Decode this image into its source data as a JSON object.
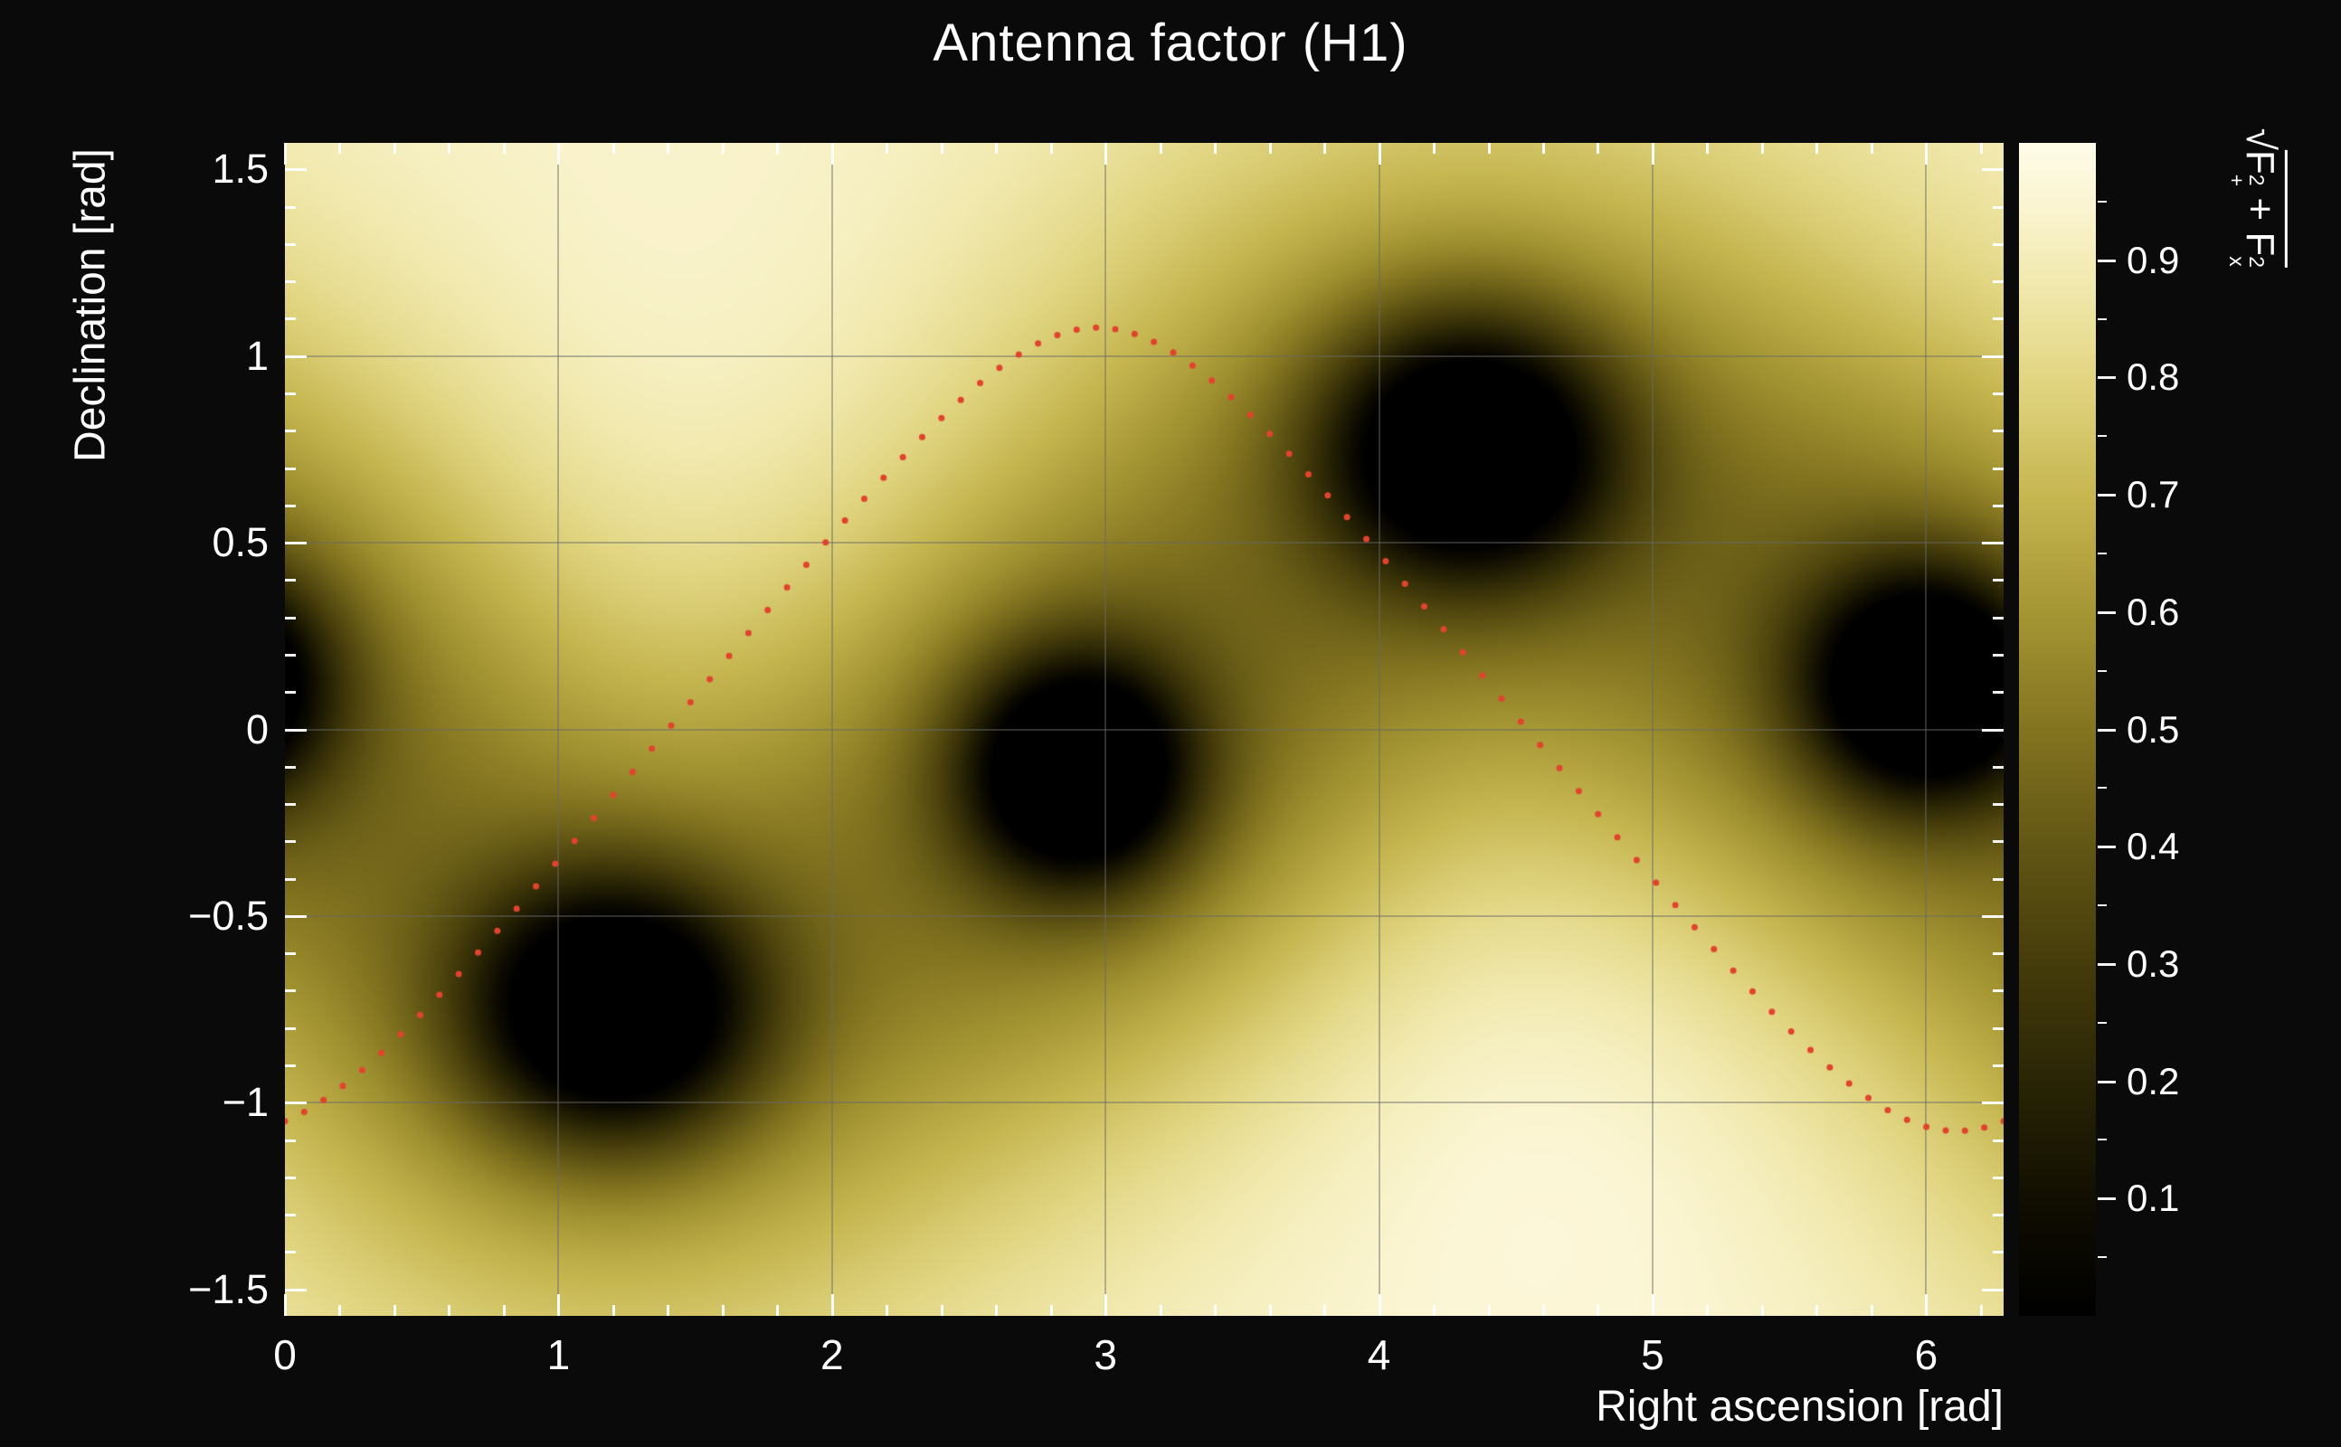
{
  "title": "Antenna factor (H1)",
  "axis_labels": {
    "x": "Right ascension [rad]",
    "y": "Declination [rad]"
  },
  "colorbar_label": {
    "radical": "√",
    "f1": "F",
    "f1_sup": "2",
    "f1_sub": "+",
    "op": "+",
    "f2": "F",
    "f2_sup": "2",
    "f2_sub": "x",
    "plain": "sqrt(F+^2 + Fx^2)"
  },
  "colors": {
    "background": "#0a0a0a",
    "text": "#ffffff",
    "tick": "#ffffff",
    "grid": "rgba(105,105,105,0.45)",
    "curve_dots": "#e0442e"
  },
  "chart_data": {
    "type": "heatmap",
    "title": "Antenna factor (H1)",
    "xlabel": "Right ascension [rad]",
    "ylabel": "Declination [rad]",
    "zlabel": "sqrt(F+^2 + Fx^2)",
    "detector": "H1",
    "x_range": [
      0,
      6.2832
    ],
    "y_range": [
      -1.5708,
      1.5708
    ],
    "z_range": [
      0,
      1
    ],
    "x_ticks": [
      {
        "v": 0,
        "label": "0"
      },
      {
        "v": 1,
        "label": "1"
      },
      {
        "v": 2,
        "label": "2"
      },
      {
        "v": 3,
        "label": "3"
      },
      {
        "v": 4,
        "label": "4"
      },
      {
        "v": 5,
        "label": "5"
      },
      {
        "v": 6,
        "label": "6"
      }
    ],
    "x_minor_step": 0.2,
    "y_ticks": [
      {
        "v": 1.5,
        "label": "1.5"
      },
      {
        "v": 1.0,
        "label": "1"
      },
      {
        "v": 0.5,
        "label": "0.5"
      },
      {
        "v": 0,
        "label": "0"
      },
      {
        "v": -0.5,
        "label": "−0.5"
      },
      {
        "v": -1.0,
        "label": "−1"
      },
      {
        "v": -1.5,
        "label": "−1.5"
      }
    ],
    "y_minor_step": 0.1,
    "colorbar_ticks": [
      {
        "v": 0.1,
        "label": "0.1"
      },
      {
        "v": 0.2,
        "label": "0.2"
      },
      {
        "v": 0.3,
        "label": "0.3"
      },
      {
        "v": 0.4,
        "label": "0.4"
      },
      {
        "v": 0.5,
        "label": "0.5"
      },
      {
        "v": 0.6,
        "label": "0.6"
      },
      {
        "v": 0.7,
        "label": "0.7"
      },
      {
        "v": 0.8,
        "label": "0.8"
      },
      {
        "v": 0.9,
        "label": "0.9"
      }
    ],
    "colorbar_minor_step": 0.05,
    "background_value": 0.94,
    "nulls": [
      {
        "ra": 1.2,
        "dec": -0.75,
        "wx": 1.3,
        "wy": 1.15
      },
      {
        "ra": 2.9,
        "dec": -0.11,
        "wx": 1.0,
        "wy": 1.0
      },
      {
        "ra": 4.33,
        "dec": 0.75,
        "wx": 1.3,
        "wy": 1.15
      },
      {
        "ra": 6.0,
        "dec": 0.12,
        "wx": 1.05,
        "wy": 1.0
      }
    ],
    "bright_spots": [
      {
        "ra": 1.9,
        "dec": 0.3
      },
      {
        "ra": 4.8,
        "dec": -0.8
      }
    ],
    "null_model": {
      "core_amp": 0.85,
      "core_sx": 0.28,
      "core_sy": 0.21,
      "halo_amp": 0.4,
      "halo_sx": 0.8,
      "halo_sy": 0.6,
      "bright_amp": 0.06,
      "bright_sx": 0.9,
      "bright_sy": 0.65
    },
    "colormap": [
      [
        0.0,
        "#000000"
      ],
      [
        0.08,
        "#0d0b01"
      ],
      [
        0.18,
        "#242004"
      ],
      [
        0.3,
        "#453c0b"
      ],
      [
        0.4,
        "#615614"
      ],
      [
        0.5,
        "#837420"
      ],
      [
        0.6,
        "#a59634"
      ],
      [
        0.7,
        "#c6b751"
      ],
      [
        0.8,
        "#e2d683"
      ],
      [
        0.88,
        "#f1e9ae"
      ],
      [
        0.95,
        "#fbf5d3"
      ],
      [
        1.0,
        "#fefce9"
      ]
    ],
    "grid": {
      "x_lines": [
        1,
        2,
        3,
        4,
        5,
        6
      ],
      "y_lines": [
        -1,
        -0.5,
        0,
        0.5,
        1
      ]
    },
    "overlay_curve": {
      "type": "dotted",
      "formula": "dec = arcsin(0.88 * sin(ra - 1.4))",
      "k": 0.88,
      "phase": 1.4,
      "n_points": 90,
      "color": "#e0442e",
      "dot_radius": 3.5
    }
  }
}
